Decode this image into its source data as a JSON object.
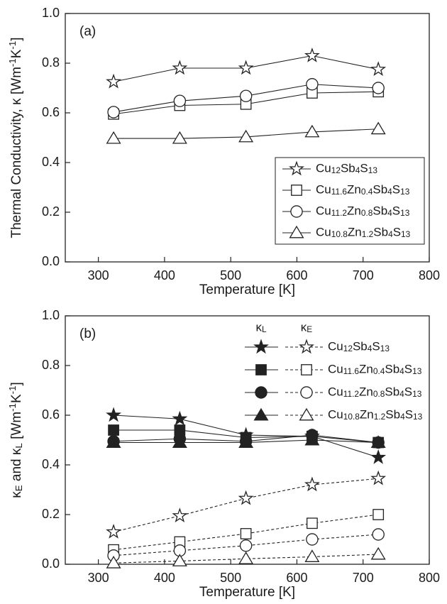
{
  "chart_data": [
    {
      "type": "line",
      "annotation": "(a)",
      "x_label": "Temperature [K]",
      "y_label": "Thermal Conductivity, κ [Wm-1K-1]",
      "x": [
        323,
        423,
        523,
        623,
        723
      ],
      "xlim": [
        250,
        800
      ],
      "xticks": [
        300,
        400,
        500,
        600,
        700,
        800
      ],
      "ylim": [
        0,
        1
      ],
      "yticks": [
        {
          "value": 0,
          "label": "0.0"
        },
        0.2,
        0.4,
        0.6,
        0.8,
        {
          "value": 1,
          "label": "1.0"
        }
      ],
      "legend": "lower right",
      "series": [
        {
          "name": "Cu12Sb4S13",
          "color": "#222222",
          "marker": "star",
          "values": [
            0.725,
            0.78,
            0.78,
            0.83,
            0.775
          ]
        },
        {
          "name": "Cu11.6Zn0.4Sb4S13",
          "color": "#222222",
          "marker": "square",
          "values": [
            0.595,
            0.63,
            0.635,
            0.68,
            0.685
          ]
        },
        {
          "name": "Cu11.2Zn0.8Sb4S13",
          "color": "#222222",
          "marker": "circle",
          "values": [
            0.603,
            0.648,
            0.668,
            0.715,
            0.7
          ]
        },
        {
          "name": "Cu10.8Zn1.2Sb4S13",
          "color": "#222222",
          "marker": "triangle",
          "values": [
            0.497,
            0.497,
            0.503,
            0.523,
            0.535
          ]
        }
      ]
    },
    {
      "type": "paired-line",
      "annotation": "(b)",
      "x_label": "Temperature [K]",
      "y_label": "κE and κL [Wm-1K-1]",
      "x": [
        323,
        423,
        523,
        623,
        723
      ],
      "xlim": [
        250,
        800
      ],
      "xticks": [
        300,
        400,
        500,
        600,
        700,
        800
      ],
      "ylim": [
        0,
        1
      ],
      "yticks": [
        {
          "value": 0,
          "label": "0.0"
        },
        0.2,
        0.4,
        0.6,
        0.8,
        {
          "value": 1,
          "label": "1.0"
        }
      ],
      "legend": "upper right",
      "legend_headers": [
        "κL",
        "κE"
      ],
      "series": [
        {
          "name": "Cu12Sb4S13",
          "color": "#222222",
          "marker": "star",
          "kappa_L": [
            0.6,
            0.585,
            0.52,
            0.515,
            0.43
          ],
          "kappa_E": [
            0.13,
            0.195,
            0.265,
            0.32,
            0.345
          ]
        },
        {
          "name": "Cu11.6Zn0.4Sb4S13",
          "color": "#222222",
          "marker": "square",
          "kappa_L": [
            0.54,
            0.54,
            0.51,
            0.515,
            0.49
          ],
          "kappa_E": [
            0.058,
            0.09,
            0.123,
            0.165,
            0.2
          ]
        },
        {
          "name": "Cu11.2Zn0.8Sb4S13",
          "color": "#222222",
          "marker": "circle",
          "kappa_L": [
            0.495,
            0.505,
            0.495,
            0.52,
            0.49
          ],
          "kappa_E": [
            0.035,
            0.055,
            0.075,
            0.1,
            0.12
          ]
        },
        {
          "name": "Cu10.8Zn1.2Sb4S13",
          "color": "#222222",
          "marker": "triangle",
          "kappa_L": [
            0.49,
            0.49,
            0.49,
            0.5,
            0.49
          ],
          "kappa_E": [
            0.005,
            0.013,
            0.022,
            0.03,
            0.04
          ]
        }
      ]
    }
  ]
}
